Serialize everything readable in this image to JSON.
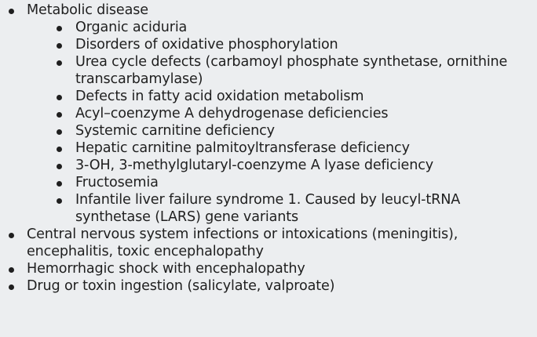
{
  "list": {
    "items": [
      {
        "text": "Metabolic disease",
        "children": [
          {
            "text": "Organic aciduria"
          },
          {
            "text": "Disorders of oxidative phosphorylation"
          },
          {
            "text": "Urea cycle defects (carbamoyl phosphate synthetase, ornithine transcarbamylase)"
          },
          {
            "text": "Defects in fatty acid oxidation metabolism"
          },
          {
            "text": "Acyl–coenzyme A dehydrogenase deficiencies"
          },
          {
            "text": "Systemic carnitine deficiency"
          },
          {
            "text": "Hepatic carnitine palmitoyltransferase deficiency"
          },
          {
            "text": "3-OH, 3-methylglutaryl-coenzyme A lyase deficiency"
          },
          {
            "text": "Fructosemia"
          },
          {
            "text": "Infantile liver failure syndrome 1. Caused by leucyl-tRNA synthetase (LARS) gene variants"
          }
        ]
      },
      {
        "text": "Central nervous system infections or intoxications (meningitis), encephalitis, toxic encephalopathy"
      },
      {
        "text": "Hemorrhagic shock with encephalopathy"
      },
      {
        "text": "Drug or toxin ingestion (salicylate, valproate)"
      }
    ]
  },
  "style": {
    "background": "#eceef0",
    "text_color": "#1f1f1f"
  }
}
